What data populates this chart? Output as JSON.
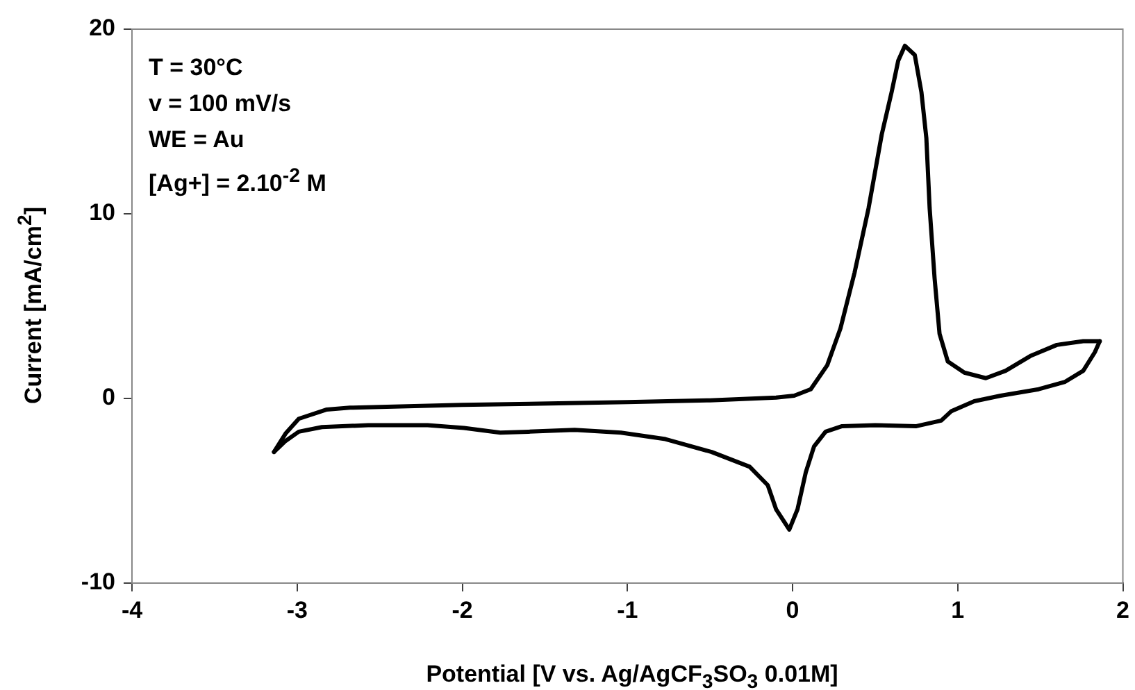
{
  "chart_data": {
    "type": "line",
    "xlabel": "Potential [V vs. Ag/AgCF$_{3}$SO$_{3}$ 0.01M]",
    "ylabel": "Current [mA/cm$^{2}$]",
    "annotations": [
      "T = 30°C",
      "v = 100 mV/s",
      "WE = Au",
      "[Ag+] = 2.10$^{-2}$ M"
    ],
    "xlim": [
      -4,
      2
    ],
    "xticks": [
      -4,
      -3,
      -2,
      -1,
      0,
      1,
      2
    ],
    "ylim": [
      -10,
      20
    ],
    "yticks": [
      -10,
      0,
      10,
      20
    ],
    "grid": false,
    "legend": false,
    "marker": "none",
    "line_style": "solid",
    "series": [
      {
        "color": "#000000",
        "x": [
          -3.14,
          -3.07,
          -2.99,
          -2.82,
          -2.68,
          -2.0,
          -1.0,
          -0.5,
          -0.1,
          0.01,
          0.11,
          0.21,
          0.29,
          0.375,
          0.46,
          0.54,
          0.6,
          0.64,
          0.68,
          0.74,
          0.78,
          0.81,
          0.83,
          0.86,
          0.89,
          0.94,
          1.04,
          1.17,
          1.29,
          1.44,
          1.6,
          1.76,
          1.86
        ],
        "values": [
          -2.9,
          -1.9,
          -1.1,
          -0.6,
          -0.5,
          -0.35,
          -0.2,
          -0.1,
          0.05,
          0.15,
          0.5,
          1.8,
          3.8,
          6.8,
          10.3,
          14.3,
          16.6,
          18.3,
          19.1,
          18.6,
          16.6,
          14.1,
          10.3,
          6.5,
          3.5,
          2.0,
          1.4,
          1.1,
          1.5,
          2.3,
          2.9,
          3.1,
          3.1
        ]
      },
      {
        "color": "#000000",
        "x": [
          -3.14,
          -3.07,
          -2.99,
          -2.85,
          -2.57,
          -2.21,
          -1.99,
          -1.77,
          -1.6,
          -1.32,
          -1.04,
          -0.77,
          -0.49,
          -0.26,
          -0.15,
          -0.1,
          -0.02,
          0.03,
          0.08,
          0.13,
          0.2,
          0.3,
          0.5,
          0.75,
          0.9,
          0.96,
          1.1,
          1.26,
          1.49,
          1.65,
          1.76,
          1.83,
          1.86
        ],
        "values": [
          -2.9,
          -2.3,
          -1.8,
          -1.55,
          -1.45,
          -1.45,
          -1.6,
          -1.85,
          -1.8,
          -1.7,
          -1.85,
          -2.2,
          -2.9,
          -3.7,
          -4.7,
          -6.0,
          -7.1,
          -6.0,
          -4.0,
          -2.6,
          -1.8,
          -1.5,
          -1.45,
          -1.5,
          -1.2,
          -0.7,
          -0.15,
          0.15,
          0.5,
          0.9,
          1.5,
          2.5,
          3.1
        ]
      }
    ]
  }
}
